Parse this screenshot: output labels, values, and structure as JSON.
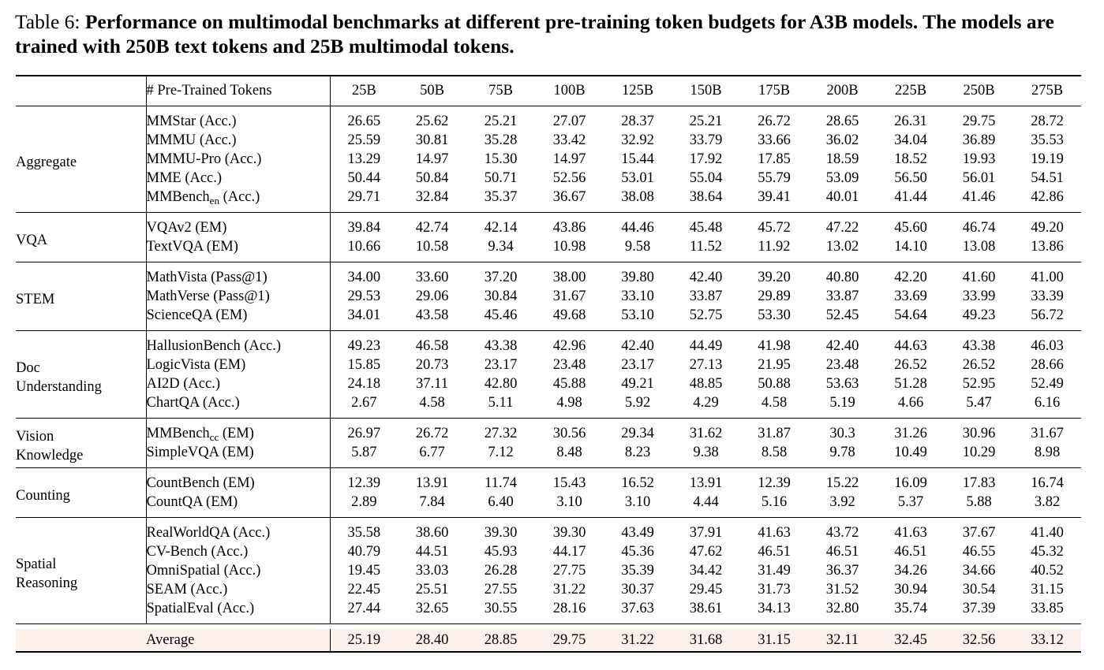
{
  "caption": {
    "label": "Table 6:",
    "text": "Performance on multimodal benchmarks at different pre-training token budgets for A3B models. The models are trained with 250B text tokens and 25B multimodal tokens."
  },
  "table": {
    "header_label": "# Pre-Trained Tokens",
    "columns": [
      "25B",
      "50B",
      "75B",
      "100B",
      "125B",
      "150B",
      "175B",
      "200B",
      "225B",
      "250B",
      "275B"
    ],
    "groups": [
      {
        "category": "Aggregate",
        "rows": [
          {
            "benchmark": "MMStar (Acc.)",
            "values": [
              "26.65",
              "25.62",
              "25.21",
              "27.07",
              "28.37",
              "25.21",
              "26.72",
              "28.65",
              "26.31",
              "29.75",
              "28.72"
            ]
          },
          {
            "benchmark": "MMMU (Acc.)",
            "values": [
              "25.59",
              "30.81",
              "35.28",
              "33.42",
              "32.92",
              "33.79",
              "33.66",
              "36.02",
              "34.04",
              "36.89",
              "35.53"
            ]
          },
          {
            "benchmark": "MMMU-Pro (Acc.)",
            "values": [
              "13.29",
              "14.97",
              "15.30",
              "14.97",
              "15.44",
              "17.92",
              "17.85",
              "18.59",
              "18.52",
              "19.93",
              "19.19"
            ]
          },
          {
            "benchmark": "MME (Acc.)",
            "values": [
              "50.44",
              "50.84",
              "50.71",
              "52.56",
              "53.01",
              "55.04",
              "55.79",
              "53.09",
              "56.50",
              "56.01",
              "54.51"
            ]
          },
          {
            "benchmark": "MMBench",
            "sub": "en",
            "suffix": " (Acc.)",
            "values": [
              "29.71",
              "32.84",
              "35.37",
              "36.67",
              "38.08",
              "38.64",
              "39.41",
              "40.01",
              "41.44",
              "41.46",
              "42.86"
            ]
          }
        ]
      },
      {
        "category": "VQA",
        "rows": [
          {
            "benchmark": "VQAv2 (EM)",
            "values": [
              "39.84",
              "42.74",
              "42.14",
              "43.86",
              "44.46",
              "45.48",
              "45.72",
              "47.22",
              "45.60",
              "46.74",
              "49.20"
            ]
          },
          {
            "benchmark": "TextVQA (EM)",
            "values": [
              "10.66",
              "10.58",
              "9.34",
              "10.98",
              "9.58",
              "11.52",
              "11.92",
              "13.02",
              "14.10",
              "13.08",
              "13.86"
            ]
          }
        ]
      },
      {
        "category": "STEM",
        "rows": [
          {
            "benchmark": "MathVista (Pass@1)",
            "values": [
              "34.00",
              "33.60",
              "37.20",
              "38.00",
              "39.80",
              "42.40",
              "39.20",
              "40.80",
              "42.20",
              "41.60",
              "41.00"
            ]
          },
          {
            "benchmark": "MathVerse (Pass@1)",
            "values": [
              "29.53",
              "29.06",
              "30.84",
              "31.67",
              "33.10",
              "33.87",
              "29.89",
              "33.87",
              "33.69",
              "33.99",
              "33.39"
            ]
          },
          {
            "benchmark": "ScienceQA (EM)",
            "values": [
              "34.01",
              "43.58",
              "45.46",
              "49.68",
              "53.10",
              "52.75",
              "53.30",
              "52.45",
              "54.64",
              "49.23",
              "56.72"
            ]
          }
        ]
      },
      {
        "category_lines": [
          "Doc",
          "Understanding"
        ],
        "rows": [
          {
            "benchmark": "HallusionBench (Acc.)",
            "values": [
              "49.23",
              "46.58",
              "43.38",
              "42.96",
              "42.40",
              "44.49",
              "41.98",
              "42.40",
              "44.63",
              "43.38",
              "46.03"
            ]
          },
          {
            "benchmark": "LogicVista (EM)",
            "values": [
              "15.85",
              "20.73",
              "23.17",
              "23.48",
              "23.17",
              "27.13",
              "21.95",
              "23.48",
              "26.52",
              "26.52",
              "28.66"
            ]
          },
          {
            "benchmark": "AI2D (Acc.)",
            "values": [
              "24.18",
              "37.11",
              "42.80",
              "45.88",
              "49.21",
              "48.85",
              "50.88",
              "53.63",
              "51.28",
              "52.95",
              "52.49"
            ]
          },
          {
            "benchmark": "ChartQA (Acc.)",
            "values": [
              "2.67",
              "4.58",
              "5.11",
              "4.98",
              "5.92",
              "4.29",
              "4.58",
              "5.19",
              "4.66",
              "5.47",
              "6.16"
            ]
          }
        ]
      },
      {
        "category_lines": [
          "Vision",
          "Knowledge"
        ],
        "rows": [
          {
            "benchmark": "MMBench",
            "sub": "cc",
            "suffix": " (EM)",
            "values": [
              "26.97",
              "26.72",
              "27.32",
              "30.56",
              "29.34",
              "31.62",
              "31.87",
              "30.3",
              "31.26",
              "30.96",
              "31.67"
            ]
          },
          {
            "benchmark": "SimpleVQA (EM)",
            "values": [
              "5.87",
              "6.77",
              "7.12",
              "8.48",
              "8.23",
              "9.38",
              "8.58",
              "9.78",
              "10.49",
              "10.29",
              "8.98"
            ]
          }
        ]
      },
      {
        "category": "Counting",
        "rows": [
          {
            "benchmark": "CountBench (EM)",
            "values": [
              "12.39",
              "13.91",
              "11.74",
              "15.43",
              "16.52",
              "13.91",
              "12.39",
              "15.22",
              "16.09",
              "17.83",
              "16.74"
            ]
          },
          {
            "benchmark": "CountQA (EM)",
            "values": [
              "2.89",
              "7.84",
              "6.40",
              "3.10",
              "3.10",
              "4.44",
              "5.16",
              "3.92",
              "5.37",
              "5.88",
              "3.82"
            ]
          }
        ]
      },
      {
        "category_lines": [
          "Spatial",
          "Reasoning"
        ],
        "rows": [
          {
            "benchmark": "RealWorldQA (Acc.)",
            "values": [
              "35.58",
              "38.60",
              "39.30",
              "39.30",
              "43.49",
              "37.91",
              "41.63",
              "43.72",
              "41.63",
              "37.67",
              "41.40"
            ]
          },
          {
            "benchmark": "CV-Bench (Acc.)",
            "values": [
              "40.79",
              "44.51",
              "45.93",
              "44.17",
              "45.36",
              "47.62",
              "46.51",
              "46.51",
              "46.51",
              "46.55",
              "45.32"
            ]
          },
          {
            "benchmark": "OmniSpatial (Acc.)",
            "values": [
              "19.45",
              "33.03",
              "26.28",
              "27.75",
              "35.39",
              "34.42",
              "31.49",
              "36.37",
              "34.26",
              "34.66",
              "40.52"
            ]
          },
          {
            "benchmark": "SEAM (Acc.)",
            "values": [
              "22.45",
              "25.51",
              "27.55",
              "31.22",
              "30.37",
              "29.45",
              "31.73",
              "31.52",
              "30.94",
              "30.54",
              "31.15"
            ]
          },
          {
            "benchmark": "SpatialEval (Acc.)",
            "values": [
              "27.44",
              "32.65",
              "30.55",
              "28.16",
              "37.63",
              "38.61",
              "34.13",
              "32.80",
              "35.74",
              "37.39",
              "33.85"
            ]
          }
        ]
      }
    ],
    "average": {
      "label": "Average",
      "values": [
        "25.19",
        "28.40",
        "28.85",
        "29.75",
        "31.22",
        "31.68",
        "31.15",
        "32.11",
        "32.45",
        "32.56",
        "33.12"
      ]
    }
  }
}
